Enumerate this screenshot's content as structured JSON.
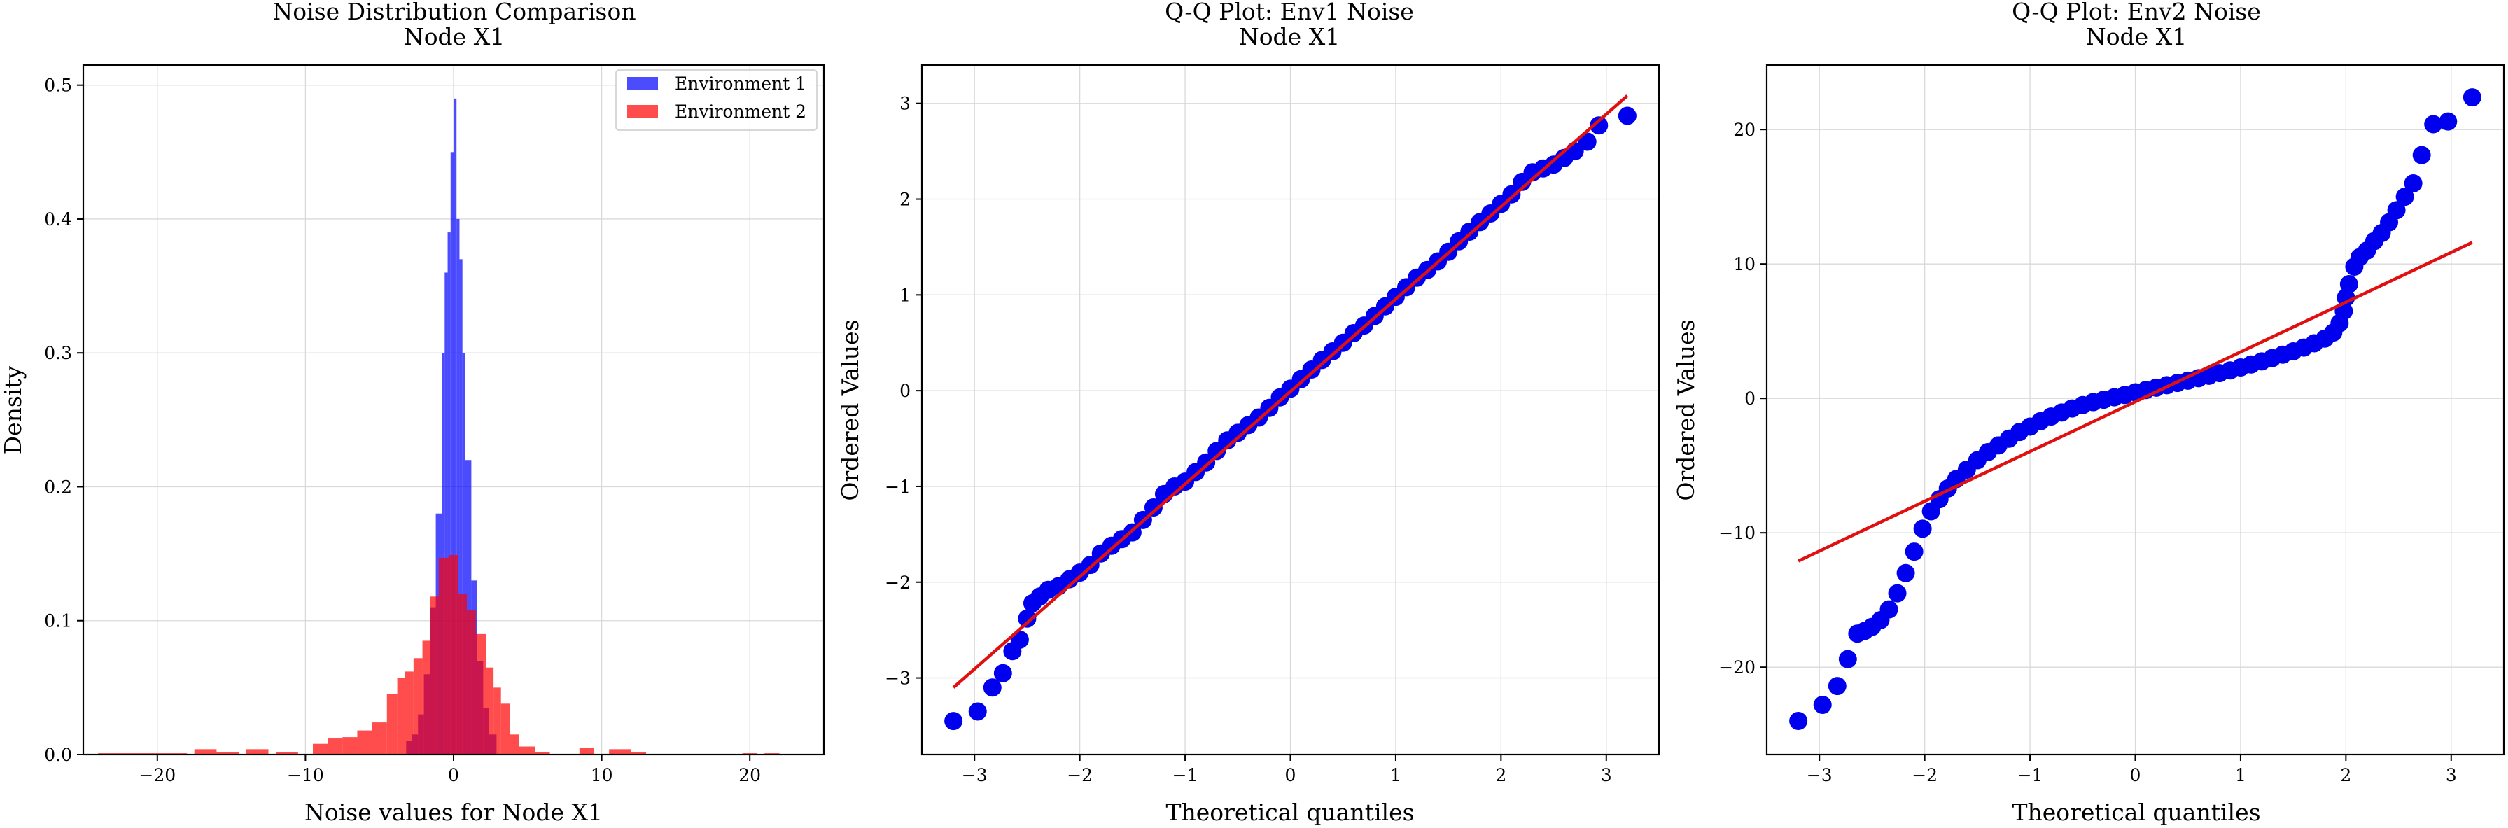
{
  "colors": {
    "env1": "#0000ff",
    "env2": "#ff0000",
    "fit": "#e01010",
    "grid": "#d9d9d9"
  },
  "chart_data": [
    {
      "type": "histogram",
      "title": "Noise Distribution Comparison",
      "subtitle": "Node X1",
      "xlabel": "Noise values for Node X1",
      "ylabel": "Density",
      "xlim": [
        -25.0,
        25.0
      ],
      "ylim": [
        0,
        0.515
      ],
      "xticks": [
        -20,
        -10,
        0,
        10,
        20
      ],
      "yticks": [
        0.0,
        0.1,
        0.2,
        0.3,
        0.4,
        0.5
      ],
      "grid": true,
      "legend_position": "top-right",
      "legend": [
        "Environment 1",
        "Environment 2"
      ],
      "series": [
        {
          "name": "Environment 1",
          "color": "#0000ff",
          "alpha": 0.7,
          "bins": [
            [
              -3.2,
              -2.8,
              0.01
            ],
            [
              -2.8,
              -2.4,
              0.015
            ],
            [
              -2.4,
              -2.0,
              0.03
            ],
            [
              -2.0,
              -1.6,
              0.06
            ],
            [
              -1.6,
              -1.2,
              0.11
            ],
            [
              -1.2,
              -0.8,
              0.18
            ],
            [
              -0.8,
              -0.6,
              0.3
            ],
            [
              -0.6,
              -0.4,
              0.36
            ],
            [
              -0.4,
              -0.2,
              0.39
            ],
            [
              -0.2,
              0.0,
              0.45
            ],
            [
              0.0,
              0.2,
              0.49
            ],
            [
              0.2,
              0.4,
              0.4
            ],
            [
              0.4,
              0.6,
              0.37
            ],
            [
              0.6,
              0.8,
              0.3
            ],
            [
              0.8,
              1.2,
              0.22
            ],
            [
              1.2,
              1.6,
              0.13
            ],
            [
              1.6,
              2.0,
              0.07
            ],
            [
              2.0,
              2.4,
              0.035
            ],
            [
              2.4,
              2.9,
              0.015
            ]
          ]
        },
        {
          "name": "Environment 2",
          "color": "#ff0000",
          "alpha": 0.7,
          "bins": [
            [
              -24.0,
              -18.0,
              0.001
            ],
            [
              -17.5,
              -16.0,
              0.004
            ],
            [
              -16.0,
              -14.5,
              0.002
            ],
            [
              -14.0,
              -12.5,
              0.004
            ],
            [
              -12.0,
              -10.5,
              0.002
            ],
            [
              -9.5,
              -8.5,
              0.008
            ],
            [
              -8.5,
              -7.5,
              0.012
            ],
            [
              -7.5,
              -6.5,
              0.013
            ],
            [
              -6.5,
              -5.5,
              0.018
            ],
            [
              -5.5,
              -4.5,
              0.024
            ],
            [
              -4.5,
              -3.8,
              0.045
            ],
            [
              -3.8,
              -3.3,
              0.057
            ],
            [
              -3.3,
              -2.7,
              0.062
            ],
            [
              -2.7,
              -2.1,
              0.072
            ],
            [
              -2.1,
              -1.6,
              0.085
            ],
            [
              -1.6,
              -1.0,
              0.118
            ],
            [
              -1.0,
              -0.3,
              0.147
            ],
            [
              -0.3,
              0.3,
              0.149
            ],
            [
              0.3,
              0.9,
              0.12
            ],
            [
              0.9,
              1.5,
              0.108
            ],
            [
              1.5,
              2.2,
              0.09
            ],
            [
              2.2,
              2.7,
              0.065
            ],
            [
              2.7,
              3.2,
              0.05
            ],
            [
              3.2,
              3.8,
              0.038
            ],
            [
              3.8,
              4.4,
              0.015
            ],
            [
              4.4,
              5.5,
              0.006
            ],
            [
              5.5,
              6.5,
              0.002
            ],
            [
              8.5,
              9.5,
              0.005
            ],
            [
              10.5,
              12.0,
              0.004
            ],
            [
              12.0,
              13.0,
              0.002
            ],
            [
              19.5,
              20.5,
              0.001
            ],
            [
              21.0,
              22.0,
              0.001
            ]
          ]
        }
      ]
    },
    {
      "type": "scatter",
      "title": "Q-Q Plot: Env1 Noise",
      "subtitle": "Node X1",
      "xlabel": "Theoretical quantiles",
      "ylabel": "Ordered Values",
      "xlim": [
        -3.5,
        3.5
      ],
      "ylim": [
        -3.8,
        3.4
      ],
      "xticks": [
        -3,
        -2,
        -1,
        0,
        1,
        2,
        3
      ],
      "yticks": [
        -3,
        -2,
        -1,
        0,
        1,
        2,
        3
      ],
      "grid": true,
      "fit_line": {
        "x": [
          -3.2,
          3.2
        ],
        "y": [
          -3.1,
          3.08
        ]
      },
      "points": [
        [
          -3.2,
          -3.45
        ],
        [
          -2.97,
          -3.35
        ],
        [
          -2.83,
          -3.1
        ],
        [
          -2.73,
          -2.95
        ],
        [
          -2.64,
          -2.72
        ],
        [
          -2.57,
          -2.6
        ],
        [
          -2.5,
          -2.38
        ],
        [
          -2.45,
          -2.22
        ],
        [
          -2.38,
          -2.15
        ],
        [
          -2.3,
          -2.08
        ],
        [
          -2.2,
          -2.04
        ],
        [
          -2.1,
          -1.97
        ],
        [
          -2.0,
          -1.9
        ],
        [
          -1.9,
          -1.82
        ],
        [
          -1.8,
          -1.7
        ],
        [
          -1.7,
          -1.62
        ],
        [
          -1.6,
          -1.55
        ],
        [
          -1.5,
          -1.48
        ],
        [
          -1.4,
          -1.35
        ],
        [
          -1.3,
          -1.22
        ],
        [
          -1.2,
          -1.08
        ],
        [
          -1.1,
          -1.0
        ],
        [
          -1.0,
          -0.95
        ],
        [
          -0.9,
          -0.85
        ],
        [
          -0.8,
          -0.75
        ],
        [
          -0.7,
          -0.63
        ],
        [
          -0.6,
          -0.52
        ],
        [
          -0.5,
          -0.44
        ],
        [
          -0.4,
          -0.36
        ],
        [
          -0.3,
          -0.28
        ],
        [
          -0.2,
          -0.18
        ],
        [
          -0.1,
          -0.07
        ],
        [
          0.0,
          0.02
        ],
        [
          0.1,
          0.12
        ],
        [
          0.2,
          0.22
        ],
        [
          0.3,
          0.32
        ],
        [
          0.4,
          0.41
        ],
        [
          0.5,
          0.5
        ],
        [
          0.6,
          0.6
        ],
        [
          0.7,
          0.68
        ],
        [
          0.8,
          0.78
        ],
        [
          0.9,
          0.88
        ],
        [
          1.0,
          0.98
        ],
        [
          1.1,
          1.08
        ],
        [
          1.2,
          1.18
        ],
        [
          1.3,
          1.26
        ],
        [
          1.4,
          1.35
        ],
        [
          1.5,
          1.45
        ],
        [
          1.6,
          1.56
        ],
        [
          1.7,
          1.66
        ],
        [
          1.8,
          1.76
        ],
        [
          1.9,
          1.85
        ],
        [
          2.0,
          1.95
        ],
        [
          2.1,
          2.05
        ],
        [
          2.2,
          2.18
        ],
        [
          2.3,
          2.28
        ],
        [
          2.4,
          2.32
        ],
        [
          2.5,
          2.36
        ],
        [
          2.6,
          2.43
        ],
        [
          2.7,
          2.5
        ],
        [
          2.82,
          2.6
        ],
        [
          2.93,
          2.77
        ],
        [
          3.2,
          2.87
        ]
      ]
    },
    {
      "type": "scatter",
      "title": "Q-Q Plot: Env2 Noise",
      "subtitle": "Node X1",
      "xlabel": "Theoretical quantiles",
      "ylabel": "Ordered Values",
      "xlim": [
        -3.5,
        3.5
      ],
      "ylim": [
        -26.5,
        24.8
      ],
      "xticks": [
        -3,
        -2,
        -1,
        0,
        1,
        2,
        3
      ],
      "yticks": [
        -20,
        -10,
        0,
        10,
        20
      ],
      "grid": true,
      "fit_line": {
        "x": [
          -3.2,
          3.2
        ],
        "y": [
          -12.1,
          11.6
        ]
      },
      "points": [
        [
          -3.2,
          -24.0
        ],
        [
          -2.97,
          -22.8
        ],
        [
          -2.83,
          -21.4
        ],
        [
          -2.73,
          -19.4
        ],
        [
          -2.64,
          -17.5
        ],
        [
          -2.57,
          -17.3
        ],
        [
          -2.5,
          -17.0
        ],
        [
          -2.42,
          -16.5
        ],
        [
          -2.34,
          -15.7
        ],
        [
          -2.26,
          -14.5
        ],
        [
          -2.18,
          -13.0
        ],
        [
          -2.1,
          -11.4
        ],
        [
          -2.02,
          -9.7
        ],
        [
          -1.94,
          -8.4
        ],
        [
          -1.86,
          -7.5
        ],
        [
          -1.78,
          -6.7
        ],
        [
          -1.7,
          -6.0
        ],
        [
          -1.6,
          -5.3
        ],
        [
          -1.5,
          -4.6
        ],
        [
          -1.4,
          -4.0
        ],
        [
          -1.3,
          -3.5
        ],
        [
          -1.2,
          -3.0
        ],
        [
          -1.1,
          -2.5
        ],
        [
          -1.0,
          -2.1
        ],
        [
          -0.9,
          -1.7
        ],
        [
          -0.8,
          -1.35
        ],
        [
          -0.7,
          -1.05
        ],
        [
          -0.6,
          -0.75
        ],
        [
          -0.5,
          -0.5
        ],
        [
          -0.4,
          -0.28
        ],
        [
          -0.3,
          -0.1
        ],
        [
          -0.2,
          0.08
        ],
        [
          -0.1,
          0.25
        ],
        [
          0.0,
          0.45
        ],
        [
          0.1,
          0.62
        ],
        [
          0.2,
          0.8
        ],
        [
          0.3,
          0.98
        ],
        [
          0.4,
          1.15
        ],
        [
          0.5,
          1.32
        ],
        [
          0.6,
          1.5
        ],
        [
          0.7,
          1.68
        ],
        [
          0.8,
          1.88
        ],
        [
          0.9,
          2.08
        ],
        [
          1.0,
          2.3
        ],
        [
          1.1,
          2.52
        ],
        [
          1.2,
          2.75
        ],
        [
          1.3,
          3.0
        ],
        [
          1.4,
          3.25
        ],
        [
          1.5,
          3.5
        ],
        [
          1.6,
          3.78
        ],
        [
          1.7,
          4.1
        ],
        [
          1.8,
          4.45
        ],
        [
          1.88,
          4.9
        ],
        [
          1.94,
          5.6
        ],
        [
          1.98,
          6.5
        ],
        [
          2.0,
          7.5
        ],
        [
          2.03,
          8.5
        ],
        [
          2.08,
          9.8
        ],
        [
          2.13,
          10.5
        ],
        [
          2.2,
          11.0
        ],
        [
          2.27,
          11.7
        ],
        [
          2.34,
          12.3
        ],
        [
          2.41,
          13.1
        ],
        [
          2.48,
          14.0
        ],
        [
          2.56,
          15.0
        ],
        [
          2.64,
          16.0
        ],
        [
          2.72,
          18.1
        ],
        [
          2.83,
          20.4
        ],
        [
          2.97,
          20.6
        ],
        [
          3.2,
          22.4
        ]
      ]
    }
  ]
}
